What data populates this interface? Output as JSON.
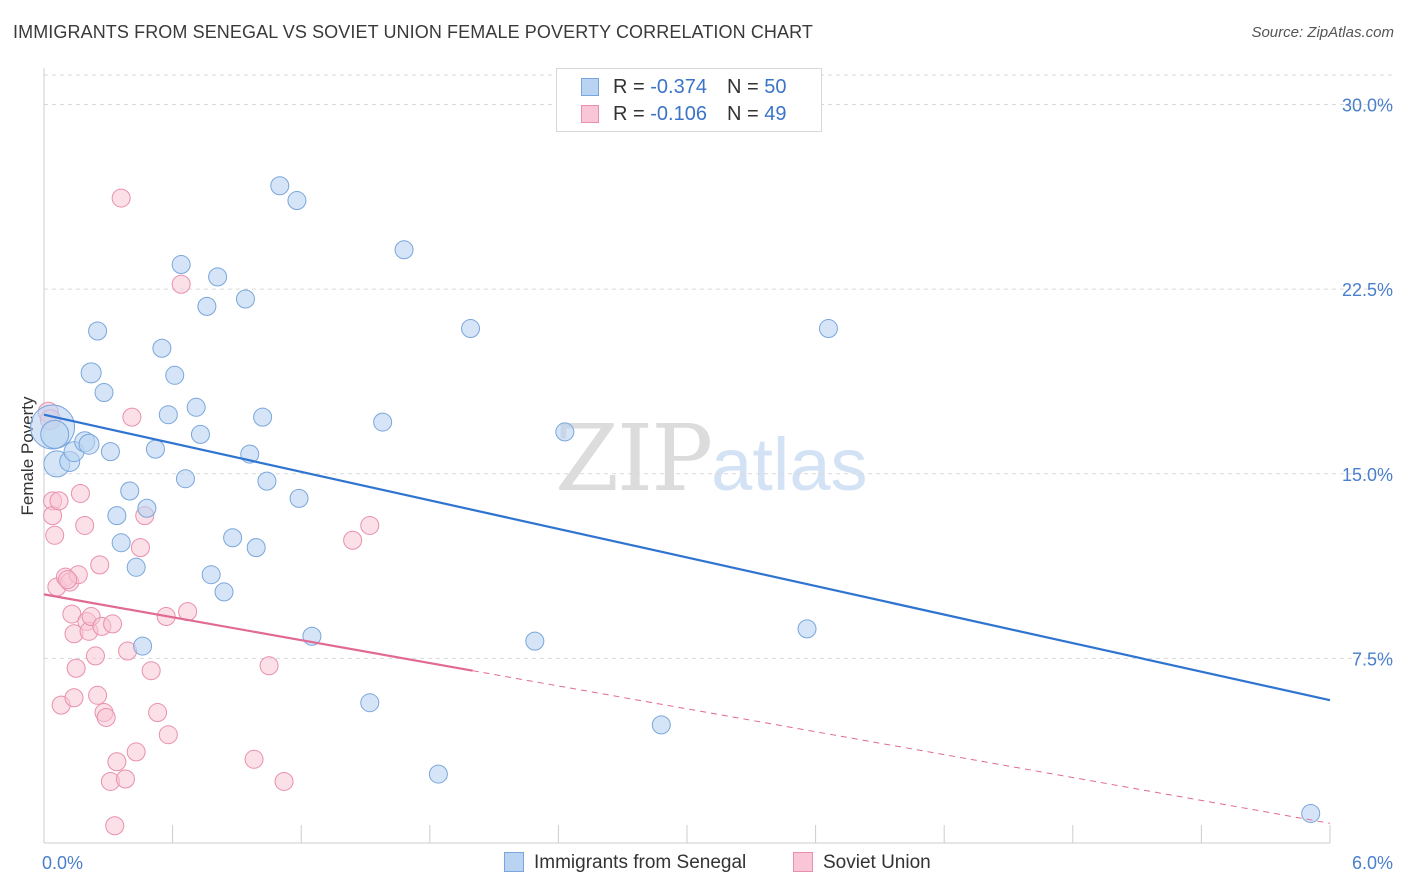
{
  "header": {
    "title": "IMMIGRANTS FROM SENEGAL VS SOVIET UNION FEMALE POVERTY CORRELATION CHART",
    "source": "Source: ZipAtlas.com"
  },
  "watermark": {
    "zip": "ZIP",
    "atlas": "atlas"
  },
  "legend": {
    "rows": [
      {
        "r_label": "R = ",
        "r_value": "-0.374",
        "n_label": "N = ",
        "n_value": "50"
      },
      {
        "r_label": "R = ",
        "r_value": "-0.106",
        "n_label": "N = ",
        "n_value": "49"
      }
    ]
  },
  "bottom_legend": {
    "series1": "Immigrants from Senegal",
    "series2": "Soviet Union"
  },
  "colors": {
    "blue_fill": "#b9d3f2",
    "blue_stroke": "#7aa6dc",
    "blue_line": "#2f74d0",
    "pink_fill": "#f8c6d6",
    "pink_stroke": "#e98fae",
    "pink_line": "#e06a93",
    "grid": "#d9d9d9",
    "tick_label": "#4a7fcc"
  },
  "chart_data": {
    "type": "scatter",
    "title": "IMMIGRANTS FROM SENEGAL VS SOVIET UNION FEMALE POVERTY CORRELATION CHART",
    "xlabel": "",
    "ylabel": "Female Poverty",
    "xlim": [
      0,
      6.0
    ],
    "ylim": [
      0,
      31.2
    ],
    "y_ticks": [
      7.5,
      15.0,
      22.5,
      30.0
    ],
    "y_tick_labels": [
      "7.5%",
      "15.0%",
      "22.5%",
      "30.0%"
    ],
    "x_tick_labels": [
      "0.0%",
      "6.0%"
    ],
    "grid": "horizontal dashed",
    "series": [
      {
        "name": "Immigrants from Senegal",
        "r": -0.374,
        "n": 50,
        "trend": {
          "x0": 0.0,
          "y0": 17.4,
          "x1": 6.0,
          "y1": 5.8
        },
        "points": [
          {
            "x": 0.04,
            "y": 16.9,
            "s": 22
          },
          {
            "x": 0.05,
            "y": 16.6,
            "s": 14
          },
          {
            "x": 0.06,
            "y": 15.4,
            "s": 13
          },
          {
            "x": 0.12,
            "y": 15.5,
            "s": 10
          },
          {
            "x": 0.14,
            "y": 15.9,
            "s": 10
          },
          {
            "x": 0.19,
            "y": 16.3,
            "s": 10
          },
          {
            "x": 0.21,
            "y": 16.2,
            "s": 10
          },
          {
            "x": 0.22,
            "y": 19.1,
            "s": 10
          },
          {
            "x": 0.25,
            "y": 20.8,
            "s": 9
          },
          {
            "x": 0.28,
            "y": 18.3,
            "s": 9
          },
          {
            "x": 0.31,
            "y": 15.9,
            "s": 9
          },
          {
            "x": 0.34,
            "y": 13.3,
            "s": 9
          },
          {
            "x": 0.36,
            "y": 12.2,
            "s": 9
          },
          {
            "x": 0.4,
            "y": 14.3,
            "s": 9
          },
          {
            "x": 0.43,
            "y": 11.2,
            "s": 9
          },
          {
            "x": 0.46,
            "y": 8.0,
            "s": 9
          },
          {
            "x": 0.48,
            "y": 13.6,
            "s": 9
          },
          {
            "x": 0.52,
            "y": 16.0,
            "s": 9
          },
          {
            "x": 0.55,
            "y": 20.1,
            "s": 9
          },
          {
            "x": 0.58,
            "y": 17.4,
            "s": 9
          },
          {
            "x": 0.61,
            "y": 19.0,
            "s": 9
          },
          {
            "x": 0.64,
            "y": 23.5,
            "s": 9
          },
          {
            "x": 0.66,
            "y": 14.8,
            "s": 9
          },
          {
            "x": 0.71,
            "y": 17.7,
            "s": 9
          },
          {
            "x": 0.73,
            "y": 16.6,
            "s": 9
          },
          {
            "x": 0.76,
            "y": 21.8,
            "s": 9
          },
          {
            "x": 0.78,
            "y": 10.9,
            "s": 9
          },
          {
            "x": 0.81,
            "y": 23.0,
            "s": 9
          },
          {
            "x": 0.84,
            "y": 10.2,
            "s": 9
          },
          {
            "x": 0.88,
            "y": 12.4,
            "s": 9
          },
          {
            "x": 0.94,
            "y": 22.1,
            "s": 9
          },
          {
            "x": 0.96,
            "y": 15.8,
            "s": 9
          },
          {
            "x": 0.99,
            "y": 12.0,
            "s": 9
          },
          {
            "x": 1.02,
            "y": 17.3,
            "s": 9
          },
          {
            "x": 1.04,
            "y": 14.7,
            "s": 9
          },
          {
            "x": 1.1,
            "y": 26.7,
            "s": 9
          },
          {
            "x": 1.18,
            "y": 26.1,
            "s": 9
          },
          {
            "x": 1.19,
            "y": 14.0,
            "s": 9
          },
          {
            "x": 1.25,
            "y": 8.4,
            "s": 9
          },
          {
            "x": 1.52,
            "y": 5.7,
            "s": 9
          },
          {
            "x": 1.58,
            "y": 17.1,
            "s": 9
          },
          {
            "x": 1.68,
            "y": 24.1,
            "s": 9
          },
          {
            "x": 1.84,
            "y": 2.8,
            "s": 9
          },
          {
            "x": 1.99,
            "y": 20.9,
            "s": 9
          },
          {
            "x": 2.29,
            "y": 8.2,
            "s": 9
          },
          {
            "x": 2.43,
            "y": 16.7,
            "s": 9
          },
          {
            "x": 2.88,
            "y": 4.8,
            "s": 9
          },
          {
            "x": 3.56,
            "y": 8.7,
            "s": 9
          },
          {
            "x": 3.66,
            "y": 20.9,
            "s": 9
          },
          {
            "x": 5.91,
            "y": 1.2,
            "s": 9
          }
        ]
      },
      {
        "name": "Soviet Union",
        "r": -0.106,
        "n": 49,
        "trend": {
          "x0": 0.0,
          "y0": 10.1,
          "x1": 2.0,
          "y1": 7.0,
          "x1_dashed": 6.0,
          "y1_dashed": 0.8
        },
        "points": [
          {
            "x": 0.02,
            "y": 17.5,
            "s": 10
          },
          {
            "x": 0.03,
            "y": 17.2,
            "s": 10
          },
          {
            "x": 0.04,
            "y": 13.9,
            "s": 9
          },
          {
            "x": 0.04,
            "y": 13.3,
            "s": 9
          },
          {
            "x": 0.05,
            "y": 12.5,
            "s": 9
          },
          {
            "x": 0.06,
            "y": 10.4,
            "s": 9
          },
          {
            "x": 0.07,
            "y": 13.9,
            "s": 9
          },
          {
            "x": 0.08,
            "y": 5.6,
            "s": 9
          },
          {
            "x": 0.1,
            "y": 10.8,
            "s": 9
          },
          {
            "x": 0.12,
            "y": 10.6,
            "s": 9
          },
          {
            "x": 0.13,
            "y": 9.3,
            "s": 9
          },
          {
            "x": 0.14,
            "y": 8.5,
            "s": 9
          },
          {
            "x": 0.14,
            "y": 5.9,
            "s": 9
          },
          {
            "x": 0.15,
            "y": 7.1,
            "s": 9
          },
          {
            "x": 0.16,
            "y": 10.9,
            "s": 9
          },
          {
            "x": 0.17,
            "y": 14.2,
            "s": 9
          },
          {
            "x": 0.19,
            "y": 12.9,
            "s": 9
          },
          {
            "x": 0.2,
            "y": 9.0,
            "s": 9
          },
          {
            "x": 0.21,
            "y": 8.6,
            "s": 9
          },
          {
            "x": 0.22,
            "y": 9.2,
            "s": 9
          },
          {
            "x": 0.24,
            "y": 7.6,
            "s": 9
          },
          {
            "x": 0.25,
            "y": 6.0,
            "s": 9
          },
          {
            "x": 0.26,
            "y": 11.3,
            "s": 9
          },
          {
            "x": 0.27,
            "y": 8.8,
            "s": 9
          },
          {
            "x": 0.28,
            "y": 5.3,
            "s": 9
          },
          {
            "x": 0.29,
            "y": 5.1,
            "s": 9
          },
          {
            "x": 0.31,
            "y": 2.5,
            "s": 9
          },
          {
            "x": 0.32,
            "y": 8.9,
            "s": 9
          },
          {
            "x": 0.33,
            "y": 0.7,
            "s": 9
          },
          {
            "x": 0.34,
            "y": 3.3,
            "s": 9
          },
          {
            "x": 0.36,
            "y": 26.2,
            "s": 9
          },
          {
            "x": 0.38,
            "y": 2.6,
            "s": 9
          },
          {
            "x": 0.39,
            "y": 7.8,
            "s": 9
          },
          {
            "x": 0.41,
            "y": 17.3,
            "s": 9
          },
          {
            "x": 0.43,
            "y": 3.7,
            "s": 9
          },
          {
            "x": 0.45,
            "y": 12.0,
            "s": 9
          },
          {
            "x": 0.47,
            "y": 13.3,
            "s": 9
          },
          {
            "x": 0.5,
            "y": 7.0,
            "s": 9
          },
          {
            "x": 0.53,
            "y": 5.3,
            "s": 9
          },
          {
            "x": 0.57,
            "y": 9.2,
            "s": 9
          },
          {
            "x": 0.58,
            "y": 4.4,
            "s": 9
          },
          {
            "x": 0.64,
            "y": 22.7,
            "s": 9
          },
          {
            "x": 0.67,
            "y": 9.4,
            "s": 9
          },
          {
            "x": 0.98,
            "y": 3.4,
            "s": 9
          },
          {
            "x": 1.05,
            "y": 7.2,
            "s": 9
          },
          {
            "x": 1.12,
            "y": 2.5,
            "s": 9
          },
          {
            "x": 1.44,
            "y": 12.3,
            "s": 9
          },
          {
            "x": 1.52,
            "y": 12.9,
            "s": 9
          },
          {
            "x": 0.11,
            "y": 10.7,
            "s": 9
          }
        ]
      }
    ]
  }
}
